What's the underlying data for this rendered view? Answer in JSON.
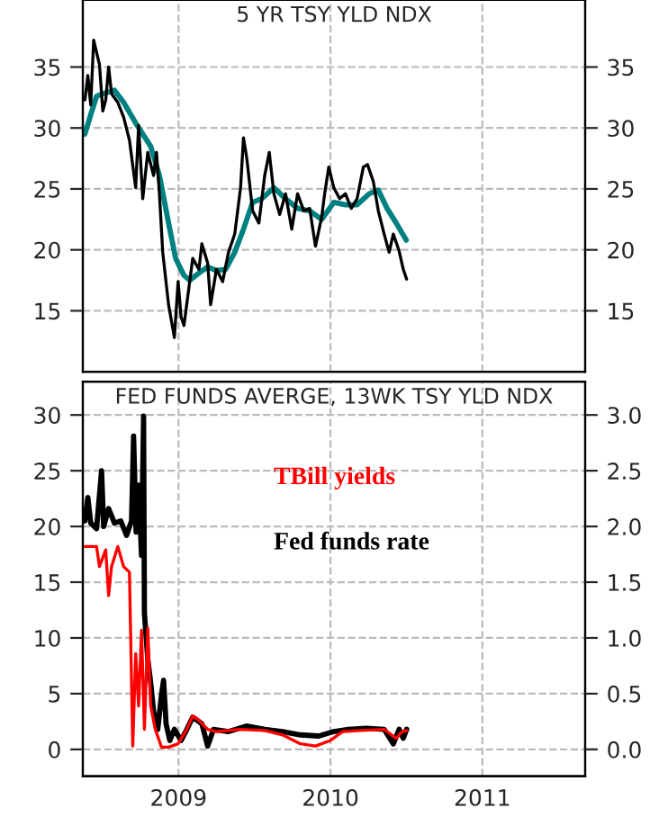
{
  "chart_data": [
    {
      "type": "line",
      "title": "5 YR TSY YLD NDX",
      "xlim": [
        "2008-05-16",
        "2011-09-05"
      ],
      "xticks": [
        "2009",
        "2010",
        "2011"
      ],
      "ylim": [
        10,
        40.5
      ],
      "yticks": [
        15,
        20,
        25,
        30,
        35
      ],
      "y2lim": [
        10,
        40.5
      ],
      "y2ticks": [
        15,
        20,
        25,
        30,
        35
      ],
      "grid": true,
      "tick_labels": "y",
      "series": [
        {
          "color": "#000000",
          "x": [
            "2008-05-21",
            "2008-05-28",
            "2008-06-04",
            "2008-06-11",
            "2008-06-18",
            "2008-06-25",
            "2008-07-03",
            "2008-07-10",
            "2008-07-17",
            "2008-07-24",
            "2008-08-08",
            "2008-08-22",
            "2008-09-05",
            "2008-09-20",
            "2008-09-27",
            "2008-10-07",
            "2008-10-19",
            "2008-11-02",
            "2008-11-09",
            "2008-11-16",
            "2008-11-24",
            "2008-12-08",
            "2008-12-22",
            "2008-12-31",
            "2009-01-07",
            "2009-01-14",
            "2009-01-24",
            "2009-02-04",
            "2009-02-19",
            "2009-02-26",
            "2009-03-12",
            "2009-03-19",
            "2009-04-02",
            "2009-04-17",
            "2009-05-01",
            "2009-05-16",
            "2009-05-30",
            "2009-06-06",
            "2009-06-14",
            "2009-06-28",
            "2009-07-13",
            "2009-07-27",
            "2009-08-07",
            "2009-08-18",
            "2009-09-01",
            "2009-09-15",
            "2009-09-30",
            "2009-10-14",
            "2009-10-29",
            "2009-11-12",
            "2009-11-26",
            "2009-12-11",
            "2009-12-18",
            "2009-12-28",
            "2010-01-09",
            "2010-01-23",
            "2010-02-06",
            "2010-02-20",
            "2010-03-06",
            "2010-03-21",
            "2010-03-31",
            "2010-04-14",
            "2010-04-26",
            "2010-05-10",
            "2010-05-22",
            "2010-06-01",
            "2010-06-15",
            "2010-06-25",
            "2010-07-03"
          ],
          "values": [
            32.3,
            34.3,
            31.9,
            37.2,
            36.2,
            35.2,
            31.4,
            32.3,
            35,
            32.8,
            32.1,
            30.9,
            29,
            25.1,
            30.2,
            24.2,
            28,
            26.1,
            28,
            24.6,
            19.8,
            15.5,
            12.8,
            17.4,
            14.5,
            13.8,
            16.4,
            19.3,
            18.4,
            20.5,
            18.9,
            15.5,
            18.4,
            17.4,
            19.8,
            21.3,
            25.1,
            29.2,
            27.5,
            23.2,
            22.2,
            26.1,
            28,
            24.6,
            22.9,
            24.6,
            21.7,
            24.6,
            23.2,
            23.4,
            20.3,
            22.7,
            24.6,
            26.8,
            25.1,
            24.2,
            24.6,
            23.4,
            24.2,
            26.8,
            27,
            25.6,
            23.2,
            21.3,
            19.8,
            21.3,
            19.9,
            18.4,
            17.6
          ]
        },
        {
          "color": "#008080",
          "x": [
            "2008-05-21",
            "2008-06-04",
            "2008-06-18",
            "2008-07-03",
            "2008-07-31",
            "2008-08-22",
            "2008-09-20",
            "2008-10-26",
            "2008-11-16",
            "2008-12-08",
            "2008-12-25",
            "2009-01-14",
            "2009-01-28",
            "2009-02-19",
            "2009-03-12",
            "2009-04-02",
            "2009-04-24",
            "2009-05-16",
            "2009-06-06",
            "2009-06-28",
            "2009-07-20",
            "2009-08-18",
            "2009-09-15",
            "2009-10-14",
            "2009-11-12",
            "2009-12-11",
            "2010-01-09",
            "2010-02-06",
            "2010-03-06",
            "2010-04-04",
            "2010-04-26",
            "2010-05-17",
            "2010-06-08",
            "2010-07-02"
          ],
          "values": [
            29.5,
            31.1,
            32.6,
            32.8,
            33.1,
            32.1,
            30.4,
            28.5,
            26.1,
            22.2,
            19.3,
            17.9,
            17.5,
            18.1,
            18.6,
            18.3,
            18.4,
            19.8,
            21.7,
            23.9,
            24.2,
            25.1,
            24.2,
            23.4,
            23.2,
            22.5,
            23.9,
            23.7,
            23.7,
            24.6,
            24.9,
            23.4,
            22.2,
            20.8
          ]
        }
      ]
    },
    {
      "type": "line",
      "title": "FED FUNDS AVERGE, 13WK TSY YLD NDX",
      "xlim": [
        "2008-05-16",
        "2011-09-05"
      ],
      "xticks": [
        "2009",
        "2010",
        "2011"
      ],
      "ylim": [
        -2.4,
        33
      ],
      "yticks": [
        0,
        5,
        10,
        15,
        20,
        25,
        30
      ],
      "y2lim": [
        -0.24,
        3.3
      ],
      "y2ticks": [
        {
          "value": 0,
          "label": "0.0"
        },
        0.5,
        {
          "value": 1,
          "label": "1.0"
        },
        1.5,
        {
          "value": 2,
          "label": "2.0"
        },
        2.5,
        {
          "value": 3,
          "label": "3.0"
        }
      ],
      "grid": true,
      "series": [
        {
          "name": "TBill yields",
          "color": "#ff0000",
          "axis": "y2",
          "x": [
            "2008-05-21",
            "2008-06-18",
            "2008-06-25",
            "2008-07-10",
            "2008-07-17",
            "2008-07-24",
            "2008-08-08",
            "2008-08-22",
            "2008-09-05",
            "2008-09-13",
            "2008-09-20",
            "2008-09-27",
            "2008-10-04",
            "2008-10-11",
            "2008-10-19",
            "2008-10-26",
            "2008-11-06",
            "2008-11-21",
            "2008-12-08",
            "2008-12-31",
            "2009-01-21",
            "2009-02-04",
            "2009-02-19",
            "2009-03-12",
            "2009-04-02",
            "2009-05-01",
            "2009-05-30",
            "2009-07-27",
            "2009-09-08",
            "2009-10-21",
            "2009-11-26",
            "2010-01-01",
            "2010-01-30",
            "2010-03-14",
            "2010-05-10",
            "2010-06-08",
            "2010-06-22",
            "2010-07-03"
          ],
          "values": [
            1.82,
            1.82,
            1.64,
            1.79,
            1.38,
            1.64,
            1.82,
            1.64,
            1.59,
            0.03,
            0.86,
            0.39,
            1.07,
            0.18,
            1.09,
            0.39,
            0.18,
            0.02,
            0.02,
            0.05,
            0.18,
            0.3,
            0.26,
            0.18,
            0.16,
            0.17,
            0.18,
            0.17,
            0.13,
            0.05,
            0.03,
            0.08,
            0.16,
            0.17,
            0.18,
            0.1,
            0.16,
            0.17
          ]
        },
        {
          "name": "Fed funds rate",
          "color": "#000000",
          "x": [
            "2008-05-21",
            "2008-05-28",
            "2008-06-04",
            "2008-06-18",
            "2008-06-30",
            "2008-07-05",
            "2008-07-17",
            "2008-07-31",
            "2008-08-15",
            "2008-08-29",
            "2008-09-10",
            "2008-09-15",
            "2008-09-21",
            "2008-09-27",
            "2008-10-04",
            "2008-10-09",
            "2008-10-11",
            "2008-10-19",
            "2008-10-26",
            "2008-11-02",
            "2008-11-12",
            "2008-11-21",
            "2008-11-26",
            "2008-12-02",
            "2008-12-11",
            "2008-12-22",
            "2009-01-07",
            "2009-01-21",
            "2009-02-04",
            "2009-02-26",
            "2009-03-12",
            "2009-03-26",
            "2009-05-01",
            "2009-06-14",
            "2009-07-27",
            "2009-09-08",
            "2009-10-21",
            "2009-12-04",
            "2010-01-09",
            "2010-02-13",
            "2010-03-28",
            "2010-05-10",
            "2010-06-01",
            "2010-06-15",
            "2010-06-25",
            "2010-07-03"
          ],
          "values": [
            20.5,
            22.6,
            20.3,
            19.8,
            25,
            20,
            21.6,
            20.3,
            20.5,
            19.2,
            20.5,
            28.1,
            19.5,
            23.7,
            17.4,
            29.9,
            12.2,
            8.1,
            6,
            3.4,
            1.8,
            4.9,
            6.2,
            2.3,
            0.8,
            1.8,
            0.8,
            1.8,
            2.9,
            2.3,
            0.3,
            1.8,
            1.6,
            2.1,
            1.8,
            1.6,
            1.3,
            1.2,
            1.6,
            1.8,
            1.9,
            1.8,
            0.5,
            1.8,
            1,
            1.8
          ]
        }
      ]
    }
  ]
}
